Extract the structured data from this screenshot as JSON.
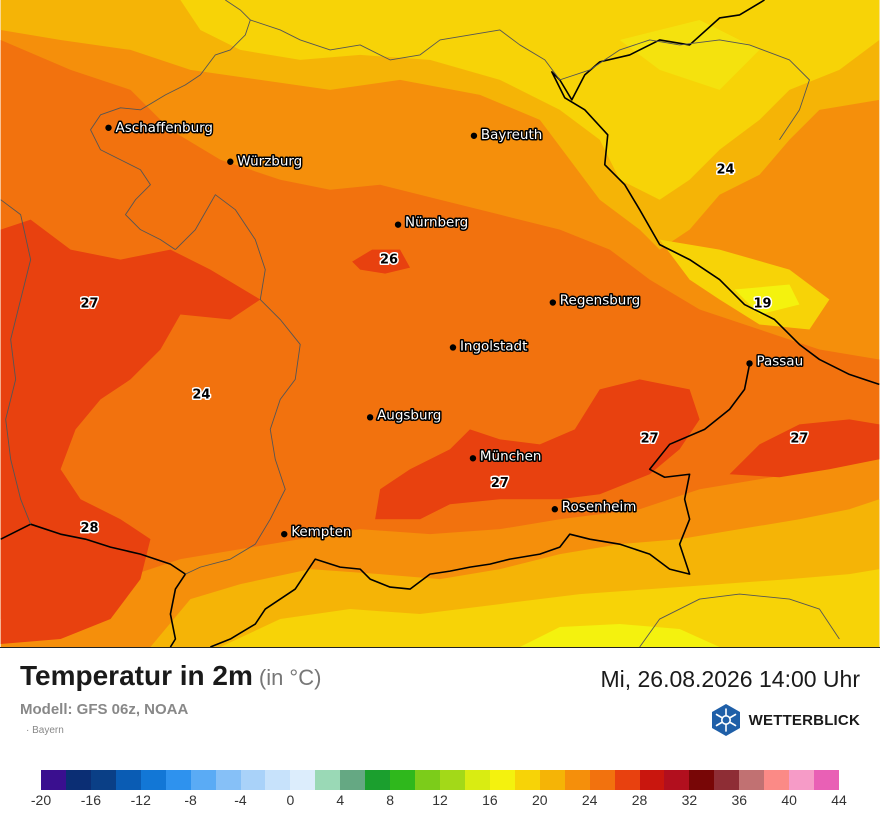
{
  "title": "Temperatur in 2m",
  "unit": "(in °C)",
  "model": "Modell: GFS 06z, NOAA",
  "region": "· Bayern",
  "datetime": "Mi, 26.08.2026 14:00 Uhr",
  "brand": {
    "name": "WETTERBLICK",
    "logo_icon": "snowflake-sun-logo-icon",
    "logo_color": "#1f5fa8"
  },
  "cities": [
    {
      "name": "Aschaffenburg"
    },
    {
      "name": "Bayreuth"
    },
    {
      "name": "Würzburg"
    },
    {
      "name": "Nürnberg"
    },
    {
      "name": "Regensburg"
    },
    {
      "name": "Ingolstadt"
    },
    {
      "name": "Passau"
    },
    {
      "name": "Augsburg"
    },
    {
      "name": "München"
    },
    {
      "name": "Rosenheim"
    },
    {
      "name": "Kempten"
    }
  ],
  "temperature_labels": [
    {
      "value": "24"
    },
    {
      "value": "26"
    },
    {
      "value": "27"
    },
    {
      "value": "19"
    },
    {
      "value": "24"
    },
    {
      "value": "27"
    },
    {
      "value": "27"
    },
    {
      "value": "27"
    },
    {
      "value": "28"
    }
  ],
  "legend": {
    "ticks": [
      "-20",
      "-16",
      "-12",
      "-8",
      "-4",
      "0",
      "4",
      "8",
      "12",
      "16",
      "20",
      "24",
      "28",
      "32",
      "36",
      "40",
      "44"
    ],
    "colors": [
      "#3a0f8f",
      "#0b2e74",
      "#0a3f86",
      "#0a5cb4",
      "#1277d6",
      "#2e92ee",
      "#5aabf5",
      "#86c0f7",
      "#a9d2f9",
      "#c7e2fb",
      "#dcedfc",
      "#9ad9b6",
      "#65a883",
      "#1b9f2e",
      "#2fb81c",
      "#7ccc1a",
      "#a3d918",
      "#d9ec12",
      "#f4f20e",
      "#f7d307",
      "#f5b406",
      "#f58f0b",
      "#f2720e",
      "#e8410f",
      "#c9160e",
      "#b20f1e",
      "#780606",
      "#8e2d35",
      "#c17172",
      "#fb8a86",
      "#f69bc7",
      "#e960b5"
    ]
  }
}
